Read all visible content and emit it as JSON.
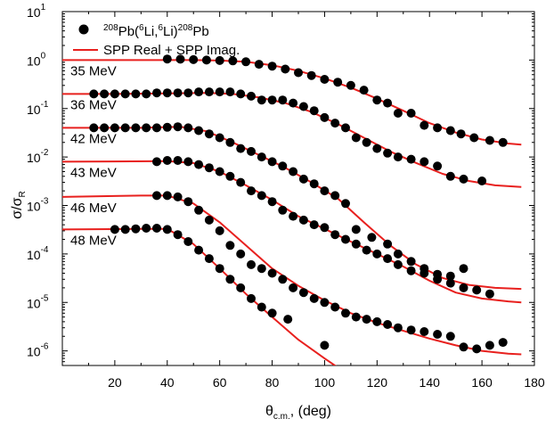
{
  "chart_data": {
    "type": "scatter",
    "xlabel": {
      "main": "θ",
      "sub": "c.m.",
      "rest": ", (deg)"
    },
    "ylabel": {
      "main": "σ/σ",
      "sub": "R"
    },
    "xlim": [
      0,
      180
    ],
    "ylim": [
      5e-07,
      10
    ],
    "yscale": "log",
    "x_ticks": [
      "20",
      "40",
      "60",
      "80",
      "100",
      "120",
      "140",
      "160",
      "180"
    ],
    "y_ticks": [
      {
        "base": "10",
        "exp": "-6"
      },
      {
        "base": "10",
        "exp": "-5"
      },
      {
        "base": "10",
        "exp": "-4"
      },
      {
        "base": "10",
        "exp": "-3"
      },
      {
        "base": "10",
        "exp": "-2"
      },
      {
        "base": "10",
        "exp": "-1"
      },
      {
        "base": "10",
        "exp": "0"
      },
      {
        "base": "10",
        "exp": "1"
      }
    ],
    "legend": {
      "placement": "top-left",
      "data_label": {
        "p1": "208",
        "p2": "Pb(",
        "p3": "6",
        "p4": "Li,",
        "p5": "6",
        "p6": "Li)",
        "p7": "208",
        "p8": "Pb"
      },
      "fit_label": "SPP Real + SPP Imag."
    },
    "colors": {
      "fit": "#e8201e",
      "data": "#000000"
    },
    "series": [
      {
        "name": "35 MeV",
        "points": [
          [
            40,
            1.05
          ],
          [
            45,
            1.04
          ],
          [
            50,
            1.02
          ],
          [
            55,
            1.0
          ],
          [
            60,
            0.98
          ],
          [
            65,
            0.96
          ],
          [
            70,
            0.92
          ],
          [
            75,
            0.82
          ],
          [
            80,
            0.75
          ],
          [
            85,
            0.65
          ],
          [
            90,
            0.55
          ],
          [
            95,
            0.48
          ],
          [
            100,
            0.4
          ],
          [
            105,
            0.35
          ],
          [
            110,
            0.3
          ],
          [
            115,
            0.24
          ],
          [
            120,
            0.15
          ],
          [
            124,
            0.13
          ],
          [
            128,
            0.08
          ],
          [
            133,
            0.08
          ],
          [
            138,
            0.045
          ],
          [
            143,
            0.04
          ],
          [
            148,
            0.035
          ],
          [
            152,
            0.03
          ],
          [
            157,
            0.025
          ],
          [
            163,
            0.022
          ],
          [
            168,
            0.02
          ]
        ],
        "fit": [
          [
            0,
            1.0
          ],
          [
            40,
            1.0
          ],
          [
            50,
            1.0
          ],
          [
            60,
            0.98
          ],
          [
            70,
            0.92
          ],
          [
            80,
            0.78
          ],
          [
            90,
            0.6
          ],
          [
            100,
            0.42
          ],
          [
            110,
            0.27
          ],
          [
            120,
            0.16
          ],
          [
            130,
            0.09
          ],
          [
            140,
            0.05
          ],
          [
            150,
            0.032
          ],
          [
            160,
            0.023
          ],
          [
            170,
            0.019
          ],
          [
            175,
            0.018
          ]
        ]
      },
      {
        "name": "36 MeV",
        "points": [
          [
            12,
            0.2
          ],
          [
            16,
            0.2
          ],
          [
            20,
            0.2
          ],
          [
            24,
            0.2
          ],
          [
            28,
            0.2
          ],
          [
            32,
            0.2
          ],
          [
            36,
            0.21
          ],
          [
            40,
            0.21
          ],
          [
            44,
            0.21
          ],
          [
            48,
            0.21
          ],
          [
            52,
            0.22
          ],
          [
            56,
            0.22
          ],
          [
            60,
            0.22
          ],
          [
            64,
            0.22
          ],
          [
            68,
            0.2
          ],
          [
            72,
            0.18
          ],
          [
            76,
            0.15
          ],
          [
            80,
            0.15
          ],
          [
            84,
            0.15
          ],
          [
            88,
            0.13
          ],
          [
            92,
            0.11
          ],
          [
            96,
            0.09
          ],
          [
            100,
            0.065
          ],
          [
            104,
            0.05
          ],
          [
            108,
            0.04
          ],
          [
            112,
            0.025
          ],
          [
            116,
            0.02
          ],
          [
            120,
            0.015
          ],
          [
            124,
            0.012
          ],
          [
            128,
            0.01
          ],
          [
            133,
            0.009
          ],
          [
            138,
            0.008
          ],
          [
            143,
            0.0065
          ],
          [
            148,
            0.004
          ],
          [
            153,
            0.0035
          ],
          [
            160,
            0.0032
          ]
        ],
        "fit": [
          [
            0,
            0.2
          ],
          [
            20,
            0.2
          ],
          [
            40,
            0.205
          ],
          [
            55,
            0.21
          ],
          [
            65,
            0.2
          ],
          [
            75,
            0.17
          ],
          [
            85,
            0.13
          ],
          [
            95,
            0.085
          ],
          [
            105,
            0.048
          ],
          [
            115,
            0.025
          ],
          [
            125,
            0.013
          ],
          [
            135,
            0.0075
          ],
          [
            145,
            0.0045
          ],
          [
            155,
            0.0032
          ],
          [
            165,
            0.0026
          ],
          [
            175,
            0.0024
          ]
        ]
      },
      {
        "name": "42 MeV",
        "points": [
          [
            12,
            0.04
          ],
          [
            16,
            0.04
          ],
          [
            20,
            0.04
          ],
          [
            24,
            0.04
          ],
          [
            28,
            0.04
          ],
          [
            32,
            0.04
          ],
          [
            36,
            0.04
          ],
          [
            40,
            0.041
          ],
          [
            44,
            0.042
          ],
          [
            48,
            0.04
          ],
          [
            52,
            0.035
          ],
          [
            56,
            0.03
          ],
          [
            60,
            0.025
          ],
          [
            64,
            0.02
          ],
          [
            68,
            0.015
          ],
          [
            72,
            0.013
          ],
          [
            76,
            0.01
          ],
          [
            80,
            0.008
          ],
          [
            84,
            0.0065
          ],
          [
            88,
            0.005
          ],
          [
            92,
            0.0035
          ],
          [
            96,
            0.0028
          ],
          [
            100,
            0.002
          ],
          [
            104,
            0.0016
          ],
          [
            108,
            0.0011
          ],
          [
            112,
            0.00032
          ],
          [
            118,
            0.00022
          ],
          [
            124,
            0.00016
          ],
          [
            128,
            0.0001
          ],
          [
            133,
            7e-05
          ],
          [
            138,
            5e-05
          ],
          [
            143,
            3e-05
          ],
          [
            148,
            2.5e-05
          ],
          [
            153,
            2e-05
          ],
          [
            158,
            1.8e-05
          ],
          [
            163,
            1.5e-05
          ]
        ],
        "fit": [
          [
            0,
            0.04
          ],
          [
            30,
            0.04
          ],
          [
            45,
            0.042
          ],
          [
            55,
            0.034
          ],
          [
            65,
            0.02
          ],
          [
            75,
            0.011
          ],
          [
            85,
            0.006
          ],
          [
            95,
            0.003
          ],
          [
            105,
            0.0014
          ],
          [
            115,
            0.00045
          ],
          [
            125,
            0.00015
          ],
          [
            135,
            6e-05
          ],
          [
            145,
            3.2e-05
          ],
          [
            155,
            2.3e-05
          ],
          [
            165,
            2e-05
          ],
          [
            175,
            1.9e-05
          ]
        ]
      },
      {
        "name": "43 MeV",
        "points": [
          [
            36,
            0.008
          ],
          [
            40,
            0.0085
          ],
          [
            44,
            0.0085
          ],
          [
            48,
            0.008
          ],
          [
            52,
            0.007
          ],
          [
            56,
            0.006
          ],
          [
            60,
            0.005
          ],
          [
            64,
            0.004
          ],
          [
            68,
            0.003
          ],
          [
            72,
            0.002
          ],
          [
            76,
            0.0016
          ],
          [
            80,
            0.0012
          ],
          [
            84,
            0.0008
          ],
          [
            88,
            0.0006
          ],
          [
            92,
            0.0005
          ],
          [
            96,
            0.0004
          ],
          [
            100,
            0.00035
          ],
          [
            104,
            0.00025
          ],
          [
            108,
            0.0002
          ],
          [
            112,
            0.00016
          ],
          [
            116,
            0.00012
          ],
          [
            120,
            0.0001
          ],
          [
            124,
            8e-05
          ],
          [
            128,
            6e-05
          ],
          [
            133,
            4.5e-05
          ],
          [
            138,
            4e-05
          ],
          [
            143,
            3.8e-05
          ],
          [
            148,
            3.5e-05
          ],
          [
            153,
            5e-05
          ]
        ],
        "fit": [
          [
            0,
            0.008
          ],
          [
            40,
            0.0082
          ],
          [
            50,
            0.0075
          ],
          [
            60,
            0.005
          ],
          [
            70,
            0.0026
          ],
          [
            80,
            0.0013
          ],
          [
            90,
            0.0006
          ],
          [
            100,
            0.00033
          ],
          [
            110,
            0.00018
          ],
          [
            120,
            0.0001
          ],
          [
            130,
            5.5e-05
          ],
          [
            140,
            2.8e-05
          ],
          [
            150,
            1.6e-05
          ],
          [
            160,
            1.2e-05
          ],
          [
            170,
            1.05e-05
          ],
          [
            175,
            1e-05
          ]
        ]
      },
      {
        "name": "46 MeV",
        "points": [
          [
            36,
            0.0016
          ],
          [
            40,
            0.0016
          ],
          [
            44,
            0.0015
          ],
          [
            48,
            0.0012
          ],
          [
            52,
            0.0008
          ],
          [
            56,
            0.0005
          ],
          [
            60,
            0.0003
          ],
          [
            64,
            0.00015
          ],
          [
            68,
            0.0001
          ],
          [
            72,
            6e-05
          ],
          [
            76,
            5e-05
          ],
          [
            80,
            4e-05
          ],
          [
            84,
            3e-05
          ],
          [
            88,
            2e-05
          ],
          [
            92,
            1.6e-05
          ],
          [
            96,
            1.2e-05
          ],
          [
            100,
            1e-05
          ],
          [
            104,
            8e-06
          ],
          [
            108,
            6e-06
          ],
          [
            112,
            5e-06
          ],
          [
            116,
            4.5e-06
          ],
          [
            120,
            4e-06
          ],
          [
            124,
            3.5e-06
          ],
          [
            128,
            3e-06
          ],
          [
            133,
            2.7e-06
          ],
          [
            138,
            2.5e-06
          ],
          [
            143,
            2.2e-06
          ],
          [
            148,
            2e-06
          ],
          [
            153,
            1.2e-06
          ],
          [
            158,
            1.1e-06
          ],
          [
            163,
            1.3e-06
          ],
          [
            168,
            1.5e-06
          ]
        ],
        "fit": [
          [
            0,
            0.0015
          ],
          [
            30,
            0.0016
          ],
          [
            40,
            0.0016
          ],
          [
            50,
            0.0011
          ],
          [
            60,
            0.00045
          ],
          [
            70,
            0.00015
          ],
          [
            80,
            5e-05
          ],
          [
            90,
            2.2e-05
          ],
          [
            100,
            1.1e-05
          ],
          [
            110,
            6e-06
          ],
          [
            120,
            3.8e-06
          ],
          [
            130,
            2.6e-06
          ],
          [
            140,
            1.8e-06
          ],
          [
            150,
            1.3e-06
          ],
          [
            160,
            1e-06
          ],
          [
            170,
            8.8e-07
          ],
          [
            175,
            8.5e-07
          ]
        ]
      },
      {
        "name": "48 MeV",
        "points": [
          [
            20,
            0.00032
          ],
          [
            24,
            0.00032
          ],
          [
            28,
            0.00033
          ],
          [
            32,
            0.00034
          ],
          [
            36,
            0.00034
          ],
          [
            40,
            0.00032
          ],
          [
            44,
            0.00025
          ],
          [
            48,
            0.00018
          ],
          [
            52,
            0.00012
          ],
          [
            56,
            8e-05
          ],
          [
            60,
            5e-05
          ],
          [
            64,
            3e-05
          ],
          [
            68,
            2e-05
          ],
          [
            72,
            1.2e-05
          ],
          [
            76,
            8e-06
          ],
          [
            80,
            6e-06
          ],
          [
            86,
            4.5e-06
          ],
          [
            100,
            1.3e-06
          ]
        ],
        "fit": [
          [
            0,
            0.00032
          ],
          [
            30,
            0.00033
          ],
          [
            40,
            0.00033
          ],
          [
            50,
            0.00016
          ],
          [
            60,
            5e-05
          ],
          [
            70,
            1.5e-05
          ],
          [
            80,
            5e-06
          ],
          [
            90,
            1.7e-06
          ],
          [
            100,
            7e-07
          ],
          [
            110,
            3e-07
          ]
        ]
      }
    ]
  }
}
